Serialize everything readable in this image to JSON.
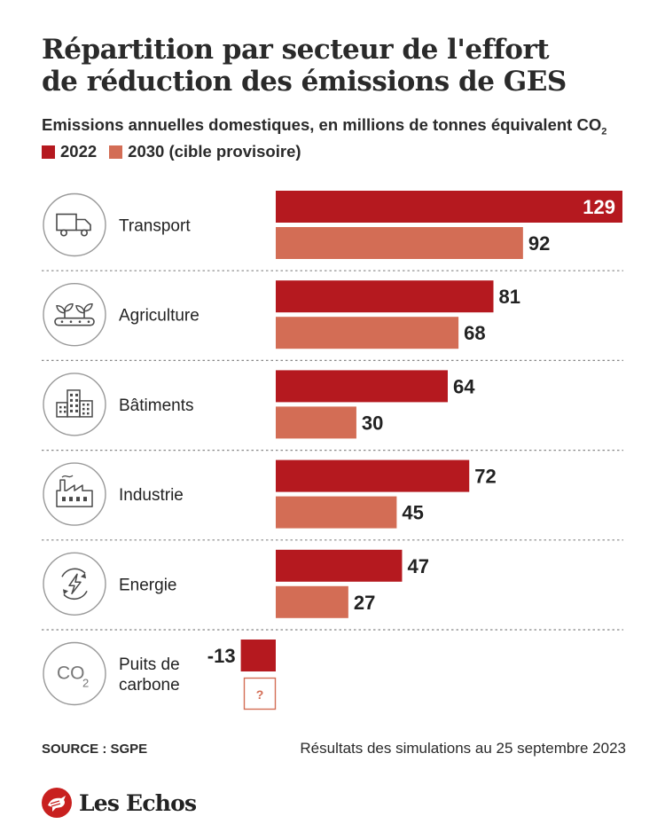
{
  "header": {
    "title_line1": "Répartition par secteur de l'effort",
    "title_line2": "de réduction des émissions de GES",
    "subtitle_main": "Emissions annuelles domestiques, en millions de tonnes équivalent CO",
    "subtitle_sub": "2"
  },
  "legend": {
    "items": [
      {
        "label": "2022",
        "color": "#b5191f"
      },
      {
        "label": "2030 (cible provisoire)",
        "color": "#d36d55"
      }
    ]
  },
  "chart_data": {
    "type": "bar",
    "orientation": "horizontal",
    "series": [
      {
        "name": "2022",
        "color": "#b5191f",
        "values": [
          129,
          81,
          64,
          72,
          47,
          -13
        ]
      },
      {
        "name": "2030 (cible provisoire)",
        "color": "#d36d55",
        "values": [
          92,
          68,
          30,
          45,
          27,
          null
        ]
      }
    ],
    "categories": [
      {
        "label": [
          "Transport"
        ],
        "icon": "truck-icon"
      },
      {
        "label": [
          "Agriculture"
        ],
        "icon": "plants-icon"
      },
      {
        "label": [
          "Bâtiments"
        ],
        "icon": "buildings-icon"
      },
      {
        "label": [
          "Industrie"
        ],
        "icon": "factory-icon"
      },
      {
        "label": [
          "Energie"
        ],
        "icon": "energy-icon"
      },
      {
        "label": [
          "Puits de",
          "carbone"
        ],
        "icon": "co2-icon"
      }
    ],
    "value_labels": [
      [
        "129",
        "92"
      ],
      [
        "81",
        "68"
      ],
      [
        "64",
        "30"
      ],
      [
        "72",
        "45"
      ],
      [
        "47",
        "27"
      ],
      [
        "-13",
        "?"
      ]
    ],
    "icon_text": {
      "co2_main": "CO",
      "co2_sub": "2"
    }
  },
  "footer": {
    "source": "SOURCE : SGPE",
    "note": "Résultats des simulations au 25 septembre 2023",
    "logo_text": "Les Echos",
    "logo_color": "#c8201f"
  }
}
